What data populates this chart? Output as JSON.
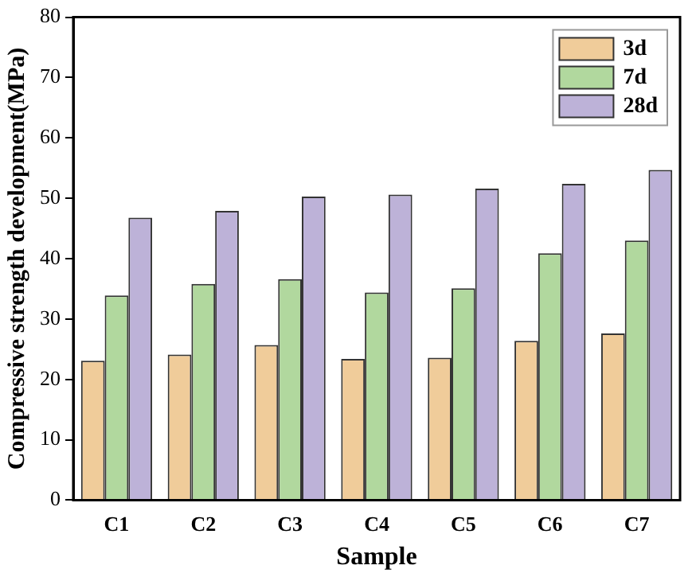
{
  "chart_data": {
    "type": "bar",
    "xlabel": "Sample",
    "ylabel": "Compressive strength development(MPa)",
    "categories": [
      "C1",
      "C2",
      "C3",
      "C4",
      "C5",
      "C6",
      "C7"
    ],
    "series": [
      {
        "name": "3d",
        "color": "#f0cc9a",
        "values": [
          23.1,
          24.1,
          25.7,
          23.4,
          23.6,
          26.4,
          27.6
        ]
      },
      {
        "name": "7d",
        "color": "#b1d89e",
        "values": [
          33.9,
          35.8,
          36.6,
          34.4,
          35.1,
          40.9,
          43.0
        ]
      },
      {
        "name": "28d",
        "color": "#bdb2d8",
        "values": [
          46.8,
          47.9,
          50.3,
          50.6,
          51.6,
          52.4,
          54.7
        ]
      }
    ],
    "ylim": [
      0,
      80
    ],
    "yticks": [
      0,
      10,
      20,
      30,
      40,
      50,
      60,
      70,
      80
    ],
    "grid": false,
    "legend": "top right"
  }
}
